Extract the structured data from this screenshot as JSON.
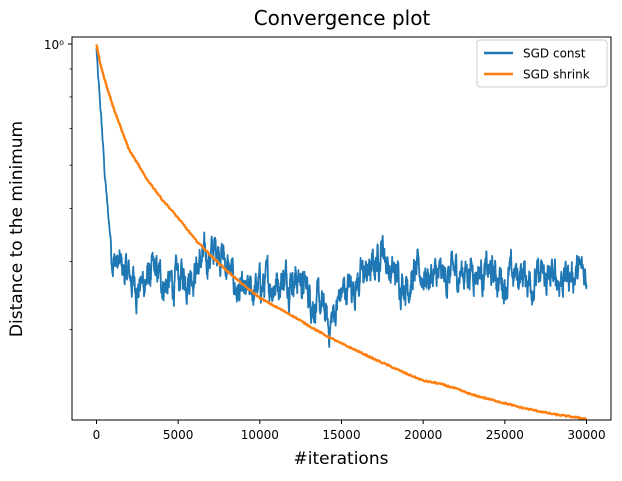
{
  "chart_data": {
    "type": "line",
    "title": "Convergence plot",
    "xlabel": "#iterations",
    "ylabel": "Distance to the minimum",
    "y_scale": "log",
    "xlim": [
      -1500,
      31500
    ],
    "ylim": [
      0.205,
      1.03
    ],
    "x_ticks": [
      0,
      5000,
      10000,
      15000,
      20000,
      25000,
      30000
    ],
    "x_tick_labels": [
      "0",
      "5000",
      "10000",
      "15000",
      "20000",
      "25000",
      "30000"
    ],
    "y_major_ticks": [
      1.0
    ],
    "y_major_tick_labels": [
      "10⁰"
    ],
    "y_minor_ticks": [
      0.3,
      0.4,
      0.5,
      0.6,
      0.7,
      0.8,
      0.9
    ],
    "grid": false,
    "legend_position": "top-right",
    "series": [
      {
        "name": "SGD const",
        "color": "#1f77b4",
        "noisy": true,
        "x": [
          0,
          100,
          300,
          500,
          700,
          900,
          1100,
          1400,
          1800,
          2200,
          2600,
          3000,
          3500,
          4000,
          4500,
          5000,
          5500,
          6000,
          6500,
          7000,
          7500,
          8000,
          8500,
          9000,
          9500,
          10000,
          11000,
          12000,
          12500,
          13000,
          14000,
          14200,
          15000,
          16000,
          17000,
          17500,
          18000,
          19000,
          20000,
          21000,
          22000,
          23000,
          24000,
          25000,
          26000,
          27000,
          28000,
          29000,
          30000
        ],
        "y": [
          0.98,
          0.86,
          0.72,
          0.58,
          0.49,
          0.43,
          0.4,
          0.39,
          0.38,
          0.37,
          0.36,
          0.37,
          0.38,
          0.37,
          0.36,
          0.37,
          0.38,
          0.39,
          0.4,
          0.41,
          0.43,
          0.39,
          0.36,
          0.34,
          0.35,
          0.36,
          0.37,
          0.38,
          0.37,
          0.35,
          0.32,
          0.3,
          0.35,
          0.37,
          0.39,
          0.43,
          0.38,
          0.37,
          0.38,
          0.37,
          0.38,
          0.39,
          0.38,
          0.37,
          0.38,
          0.37,
          0.37,
          0.38,
          0.38
        ]
      },
      {
        "name": "SGD shrink",
        "color": "#ff7f0e",
        "noisy": false,
        "x": [
          0,
          200,
          500,
          1000,
          1500,
          2000,
          3000,
          4000,
          5000,
          6000,
          7000,
          8000,
          9000,
          10000,
          11000,
          12000,
          13000,
          14000,
          15000,
          16000,
          17000,
          18000,
          19000,
          20000,
          21000,
          22000,
          23000,
          24000,
          25000,
          26000,
          27000,
          28000,
          29000,
          30000
        ],
        "y": [
          1.0,
          0.93,
          0.86,
          0.77,
          0.7,
          0.64,
          0.57,
          0.52,
          0.48,
          0.44,
          0.41,
          0.384,
          0.362,
          0.343,
          0.33,
          0.318,
          0.305,
          0.293,
          0.283,
          0.274,
          0.265,
          0.257,
          0.249,
          0.242,
          0.239,
          0.234,
          0.228,
          0.224,
          0.22,
          0.216,
          0.213,
          0.21,
          0.208,
          0.206
        ]
      }
    ]
  }
}
